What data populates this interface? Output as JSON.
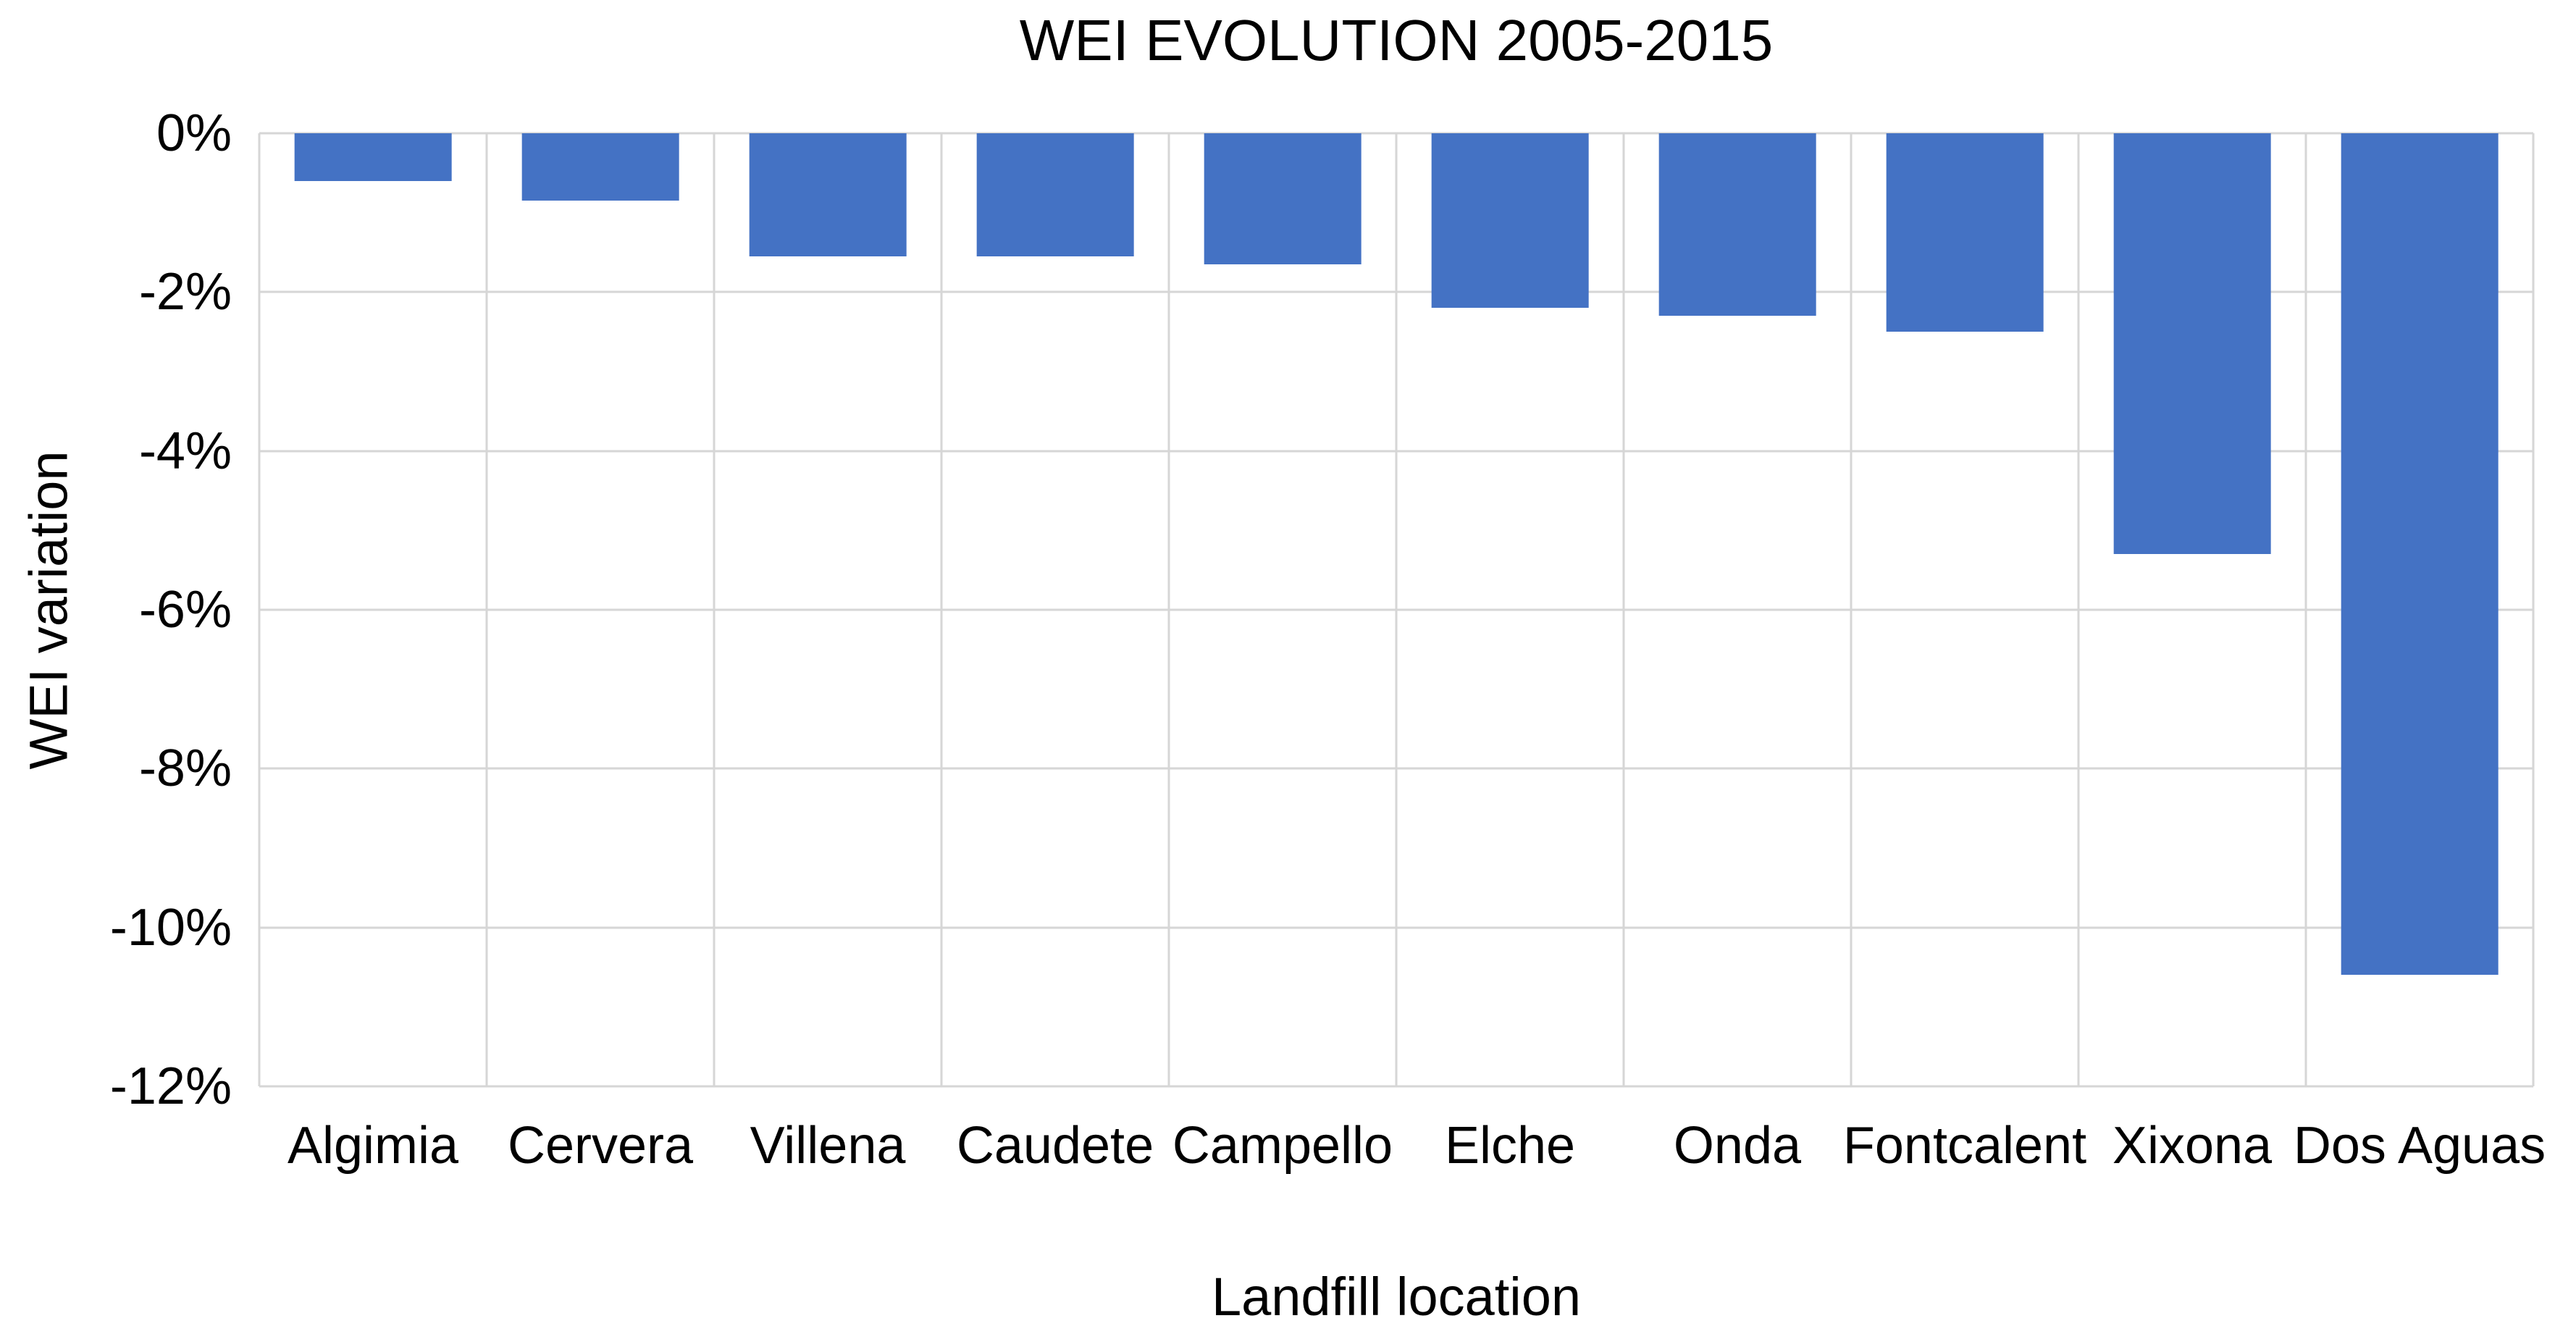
{
  "chart_data": {
    "type": "bar",
    "title": "WEI EVOLUTION 2005-2015",
    "xlabel": "Landfill location",
    "ylabel": "WEI variation",
    "categories": [
      "Algimia",
      "Cervera",
      "Villena",
      "Caudete",
      "Campello",
      "Elche",
      "Onda",
      "Fontcalent",
      "Xixona",
      "Dos Aguas"
    ],
    "values": [
      -0.6,
      -0.85,
      -1.55,
      -1.55,
      -1.65,
      -2.2,
      -2.3,
      -2.5,
      -5.3,
      -10.6
    ],
    "ylim": [
      -12,
      0
    ],
    "yticks": [
      0,
      -2,
      -4,
      -6,
      -8,
      -10,
      -12
    ],
    "ytick_labels": [
      "0%",
      "-2%",
      "-4%",
      "-6%",
      "-8%",
      "-10%",
      "-12%"
    ],
    "bar_color": "#4472C4",
    "gridline_color": "#D6D6D6",
    "grid": "both",
    "legend": "none",
    "bar_width_fraction": 0.69
  }
}
